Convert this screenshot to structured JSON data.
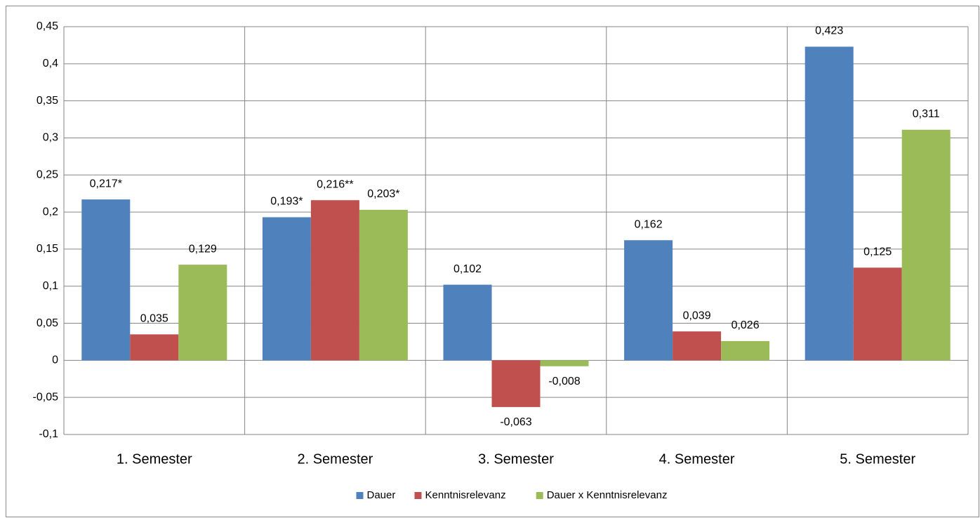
{
  "chart_data": {
    "type": "bar",
    "categories": [
      "1. Semester",
      "2. Semester",
      "3. Semester",
      "4. Semester",
      "5. Semester"
    ],
    "series": [
      {
        "name": "Dauer",
        "color": "#4f81bd",
        "values": [
          0.217,
          0.193,
          0.102,
          0.162,
          0.423
        ],
        "value_labels": [
          "0,217*",
          "0,193*",
          "0,102",
          "0,162",
          "0,423"
        ]
      },
      {
        "name": "Kenntnisrelevanz",
        "color": "#c0504d",
        "values": [
          0.035,
          0.216,
          -0.063,
          0.039,
          0.125
        ],
        "value_labels": [
          "0,035",
          "0,216**",
          "-0,063",
          "0,039",
          "0,125"
        ]
      },
      {
        "name": "Dauer x Kenntnisrelevanz",
        "color": "#9bbb59",
        "values": [
          0.129,
          0.203,
          -0.008,
          0.026,
          0.311
        ],
        "value_labels": [
          "0,129",
          "0,203*",
          "-0,008",
          "0,026",
          "0,311"
        ]
      }
    ],
    "ylim": [
      -0.1,
      0.45
    ],
    "yticks": [
      {
        "value": -0.1,
        "label": "-0,1"
      },
      {
        "value": -0.05,
        "label": "-0,05"
      },
      0,
      {
        "value": 0.05,
        "label": "0,05"
      },
      {
        "value": 0.1,
        "label": "0,1"
      },
      {
        "value": 0.15,
        "label": "0,15"
      },
      {
        "value": 0.2,
        "label": "0,2"
      },
      {
        "value": 0.25,
        "label": "0,25"
      },
      {
        "value": 0.3,
        "label": "0,3"
      },
      {
        "value": 0.35,
        "label": "0,35"
      },
      {
        "value": 0.4,
        "label": "0,4"
      },
      {
        "value": 0.45,
        "label": "0,45"
      }
    ],
    "grid": true,
    "legend": "bottom"
  }
}
